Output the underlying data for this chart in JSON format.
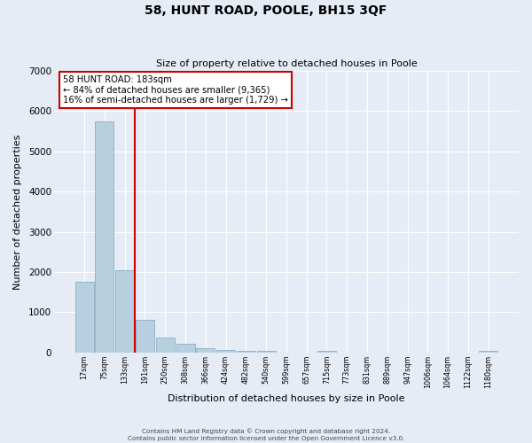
{
  "title": "58, HUNT ROAD, POOLE, BH15 3QF",
  "subtitle": "Size of property relative to detached houses in Poole",
  "xlabel": "Distribution of detached houses by size in Poole",
  "ylabel": "Number of detached properties",
  "bar_color": "#b8cfe0",
  "bar_edge_color": "#8aafc8",
  "background_color": "#e6ecf5",
  "grid_color": "#ffffff",
  "tick_labels": [
    "17sqm",
    "75sqm",
    "133sqm",
    "191sqm",
    "250sqm",
    "308sqm",
    "366sqm",
    "424sqm",
    "482sqm",
    "540sqm",
    "599sqm",
    "657sqm",
    "715sqm",
    "773sqm",
    "831sqm",
    "889sqm",
    "947sqm",
    "1006sqm",
    "1064sqm",
    "1122sqm",
    "1180sqm"
  ],
  "bar_values": [
    1750,
    5750,
    2050,
    800,
    370,
    210,
    110,
    60,
    50,
    30,
    0,
    0,
    30,
    0,
    0,
    0,
    0,
    0,
    0,
    0,
    30
  ],
  "ylim": [
    0,
    7000
  ],
  "yticks": [
    0,
    1000,
    2000,
    3000,
    4000,
    5000,
    6000,
    7000
  ],
  "property_line_label": "58 HUNT ROAD: 183sqm",
  "annotation_line1": "← 84% of detached houses are smaller (9,365)",
  "annotation_line2": "16% of semi-detached houses are larger (1,729) →",
  "box_facecolor": "#ffffff",
  "box_edgecolor": "#cc0000",
  "red_line_color": "#cc0000",
  "footer_line1": "Contains HM Land Registry data © Crown copyright and database right 2024.",
  "footer_line2": "Contains public sector information licensed under the Open Government Licence v3.0."
}
